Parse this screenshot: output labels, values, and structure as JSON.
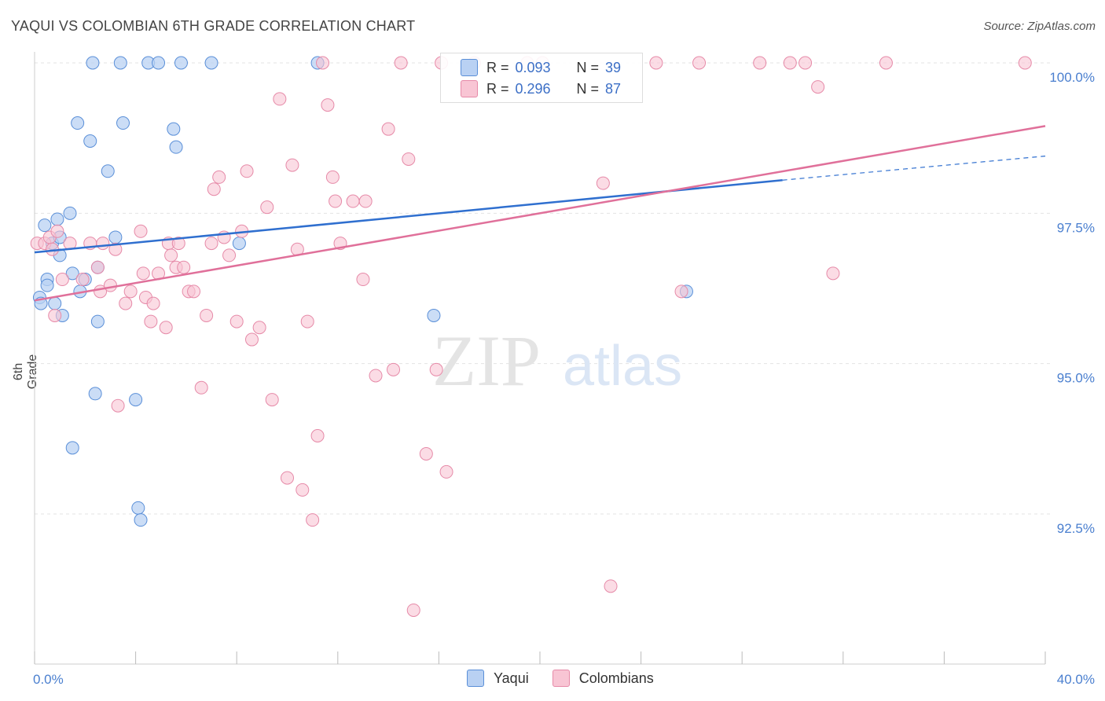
{
  "title": "YAQUI VS COLOMBIAN 6TH GRADE CORRELATION CHART",
  "source": "Source: ZipAtlas.com",
  "watermark": {
    "zip": "ZIP",
    "atlas": "atlas"
  },
  "colors": {
    "yaqui_fill": "#b9d1f3",
    "yaqui_stroke": "#5a8fd8",
    "yaqui_line": "#2f6fcf",
    "col_fill": "#f8c5d4",
    "col_stroke": "#e68aa8",
    "col_line": "#e0709a",
    "tick_text": "#4a7fcf",
    "grid": "#e3e3e3"
  },
  "legend": {
    "rows": [
      {
        "r_label": "R =",
        "r_value": "0.093",
        "n_label": "N =",
        "n_value": "39"
      },
      {
        "r_label": "R =",
        "r_value": "0.296",
        "n_label": "N =",
        "n_value": "87"
      }
    ]
  },
  "bottom_legend": [
    "Yaqui",
    "Colombians"
  ],
  "chart_data": {
    "type": "scatter",
    "title": "YAQUI VS COLOMBIAN 6TH GRADE CORRELATION CHART",
    "xlabel": "",
    "ylabel": "6th Grade",
    "xlim": [
      0,
      40
    ],
    "ylim": [
      90.2,
      100.4
    ],
    "x_tick_labels": [
      "0.0%",
      "40.0%"
    ],
    "y_ticks": [
      92.5,
      95.0,
      97.5,
      100.0
    ],
    "y_tick_labels": [
      "92.5%",
      "95.0%",
      "97.5%",
      "100.0%"
    ],
    "grid": true,
    "legend_position": "top-center",
    "series": [
      {
        "name": "Yaqui",
        "points": [
          [
            0.4,
            97.3
          ],
          [
            0.2,
            96.1
          ],
          [
            0.25,
            96.0
          ],
          [
            0.5,
            96.4
          ],
          [
            0.5,
            96.3
          ],
          [
            0.7,
            97.0
          ],
          [
            0.9,
            97.4
          ],
          [
            0.8,
            96.0
          ],
          [
            1.0,
            97.1
          ],
          [
            1.0,
            96.8
          ],
          [
            1.1,
            95.8
          ],
          [
            1.4,
            97.5
          ],
          [
            1.5,
            96.5
          ],
          [
            1.5,
            93.6
          ],
          [
            1.7,
            99.0
          ],
          [
            1.8,
            96.2
          ],
          [
            2.0,
            96.4
          ],
          [
            2.2,
            98.7
          ],
          [
            2.3,
            100.0
          ],
          [
            2.4,
            94.5
          ],
          [
            2.5,
            96.6
          ],
          [
            2.5,
            95.7
          ],
          [
            2.9,
            98.2
          ],
          [
            3.2,
            97.1
          ],
          [
            3.4,
            100.0
          ],
          [
            3.5,
            99.0
          ],
          [
            4.1,
            92.6
          ],
          [
            4.0,
            94.4
          ],
          [
            4.2,
            92.4
          ],
          [
            4.5,
            100.0
          ],
          [
            4.9,
            100.0
          ],
          [
            5.5,
            98.9
          ],
          [
            5.6,
            98.6
          ],
          [
            5.8,
            100.0
          ],
          [
            7.0,
            100.0
          ],
          [
            8.1,
            97.0
          ],
          [
            11.2,
            100.0
          ],
          [
            15.8,
            95.8
          ],
          [
            25.8,
            96.2
          ]
        ]
      },
      {
        "name": "Colombians",
        "points": [
          [
            0.1,
            97.0
          ],
          [
            0.4,
            97.0
          ],
          [
            0.6,
            97.1
          ],
          [
            0.7,
            96.9
          ],
          [
            0.8,
            95.8
          ],
          [
            0.9,
            97.2
          ],
          [
            1.1,
            96.4
          ],
          [
            1.4,
            97.0
          ],
          [
            1.9,
            96.4
          ],
          [
            2.2,
            97.0
          ],
          [
            2.5,
            96.6
          ],
          [
            2.6,
            96.2
          ],
          [
            2.7,
            97.0
          ],
          [
            3.0,
            96.3
          ],
          [
            3.2,
            96.9
          ],
          [
            3.3,
            94.3
          ],
          [
            3.6,
            96.0
          ],
          [
            3.8,
            96.2
          ],
          [
            4.2,
            97.2
          ],
          [
            4.3,
            96.5
          ],
          [
            4.4,
            96.1
          ],
          [
            4.6,
            95.7
          ],
          [
            4.7,
            96.0
          ],
          [
            4.9,
            96.5
          ],
          [
            5.2,
            95.6
          ],
          [
            5.3,
            97.0
          ],
          [
            5.4,
            96.8
          ],
          [
            5.6,
            96.6
          ],
          [
            5.7,
            97.0
          ],
          [
            5.9,
            96.6
          ],
          [
            6.1,
            96.2
          ],
          [
            6.3,
            96.2
          ],
          [
            6.6,
            94.6
          ],
          [
            6.8,
            95.8
          ],
          [
            7.0,
            97.0
          ],
          [
            7.1,
            97.9
          ],
          [
            7.3,
            98.1
          ],
          [
            7.5,
            97.1
          ],
          [
            7.7,
            96.8
          ],
          [
            8.0,
            95.7
          ],
          [
            8.2,
            97.2
          ],
          [
            8.4,
            98.2
          ],
          [
            8.6,
            95.4
          ],
          [
            8.9,
            95.6
          ],
          [
            9.2,
            97.6
          ],
          [
            9.4,
            94.4
          ],
          [
            9.7,
            99.4
          ],
          [
            10.0,
            93.1
          ],
          [
            10.2,
            98.3
          ],
          [
            10.4,
            96.9
          ],
          [
            10.6,
            92.9
          ],
          [
            10.8,
            95.7
          ],
          [
            11.0,
            92.4
          ],
          [
            11.2,
            93.8
          ],
          [
            11.4,
            100.0
          ],
          [
            11.6,
            99.3
          ],
          [
            11.8,
            98.1
          ],
          [
            11.9,
            97.7
          ],
          [
            12.1,
            97.0
          ],
          [
            12.6,
            97.7
          ],
          [
            13.0,
            96.4
          ],
          [
            13.1,
            97.7
          ],
          [
            13.5,
            94.8
          ],
          [
            14.0,
            98.9
          ],
          [
            14.2,
            94.9
          ],
          [
            14.5,
            100.0
          ],
          [
            14.8,
            98.4
          ],
          [
            15.0,
            90.9
          ],
          [
            15.5,
            93.5
          ],
          [
            15.9,
            94.9
          ],
          [
            16.1,
            100.0
          ],
          [
            16.3,
            93.2
          ],
          [
            17.4,
            100.0
          ],
          [
            19.5,
            100.0
          ],
          [
            20.1,
            100.0
          ],
          [
            22.5,
            98.0
          ],
          [
            22.8,
            91.3
          ],
          [
            24.6,
            100.0
          ],
          [
            25.6,
            96.2
          ],
          [
            26.3,
            100.0
          ],
          [
            28.7,
            100.0
          ],
          [
            29.9,
            100.0
          ],
          [
            31.0,
            99.6
          ],
          [
            31.6,
            96.5
          ],
          [
            33.7,
            100.0
          ],
          [
            39.2,
            100.0
          ],
          [
            30.5,
            100.0
          ]
        ]
      }
    ],
    "trend_lines": [
      {
        "series": "Yaqui",
        "from": [
          0,
          96.85
        ],
        "to": [
          29.6,
          98.05
        ],
        "dashed_to": [
          40,
          98.45
        ]
      },
      {
        "series": "Colombians",
        "from": [
          0,
          96.05
        ],
        "to": [
          40,
          98.95
        ]
      }
    ]
  }
}
